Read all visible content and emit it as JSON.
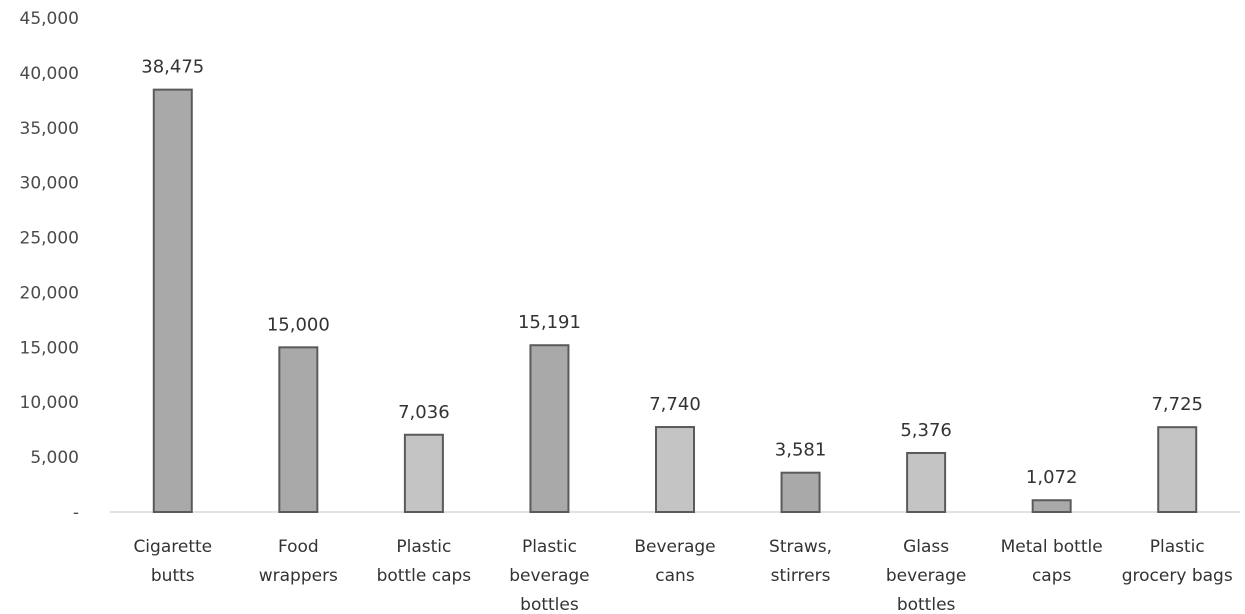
{
  "chart_data": {
    "type": "bar",
    "title": "",
    "xlabel": "",
    "ylabel": "",
    "ylim": [
      0,
      45000
    ],
    "grid": false,
    "legend": "none",
    "y_ticks": [
      "-",
      "5,000",
      "10,000",
      "15,000",
      "20,000",
      "25,000",
      "30,000",
      "35,000",
      "40,000",
      "45,000"
    ],
    "categories": [
      [
        "Cigarette",
        "butts"
      ],
      [
        "Food",
        "wrappers"
      ],
      [
        "Plastic",
        "bottle caps"
      ],
      [
        "Plastic",
        "beverage",
        "bottles"
      ],
      [
        "Beverage",
        "cans"
      ],
      [
        "Straws,",
        "stirrers"
      ],
      [
        "Glass",
        "beverage",
        "bottles"
      ],
      [
        "Metal bottle",
        "caps"
      ],
      [
        "Plastic",
        "grocery bags"
      ]
    ],
    "values": [
      38475,
      15000,
      7036,
      15191,
      7740,
      3581,
      5376,
      1072,
      7725
    ],
    "value_labels": [
      "38,475",
      "15,000",
      "7,036",
      "15,191",
      "7,740",
      "3,581",
      "5,376",
      "1,072",
      "7,725"
    ],
    "colors": {
      "bar_fill_dark": "#a9a9a9",
      "bar_fill_light": "#c4c4c4",
      "bar_stroke": "#5a5a5a",
      "axis": "#d9d9d9"
    },
    "bar_shades": [
      "dark",
      "dark",
      "light",
      "dark",
      "light",
      "dark",
      "light",
      "dark",
      "light"
    ]
  }
}
